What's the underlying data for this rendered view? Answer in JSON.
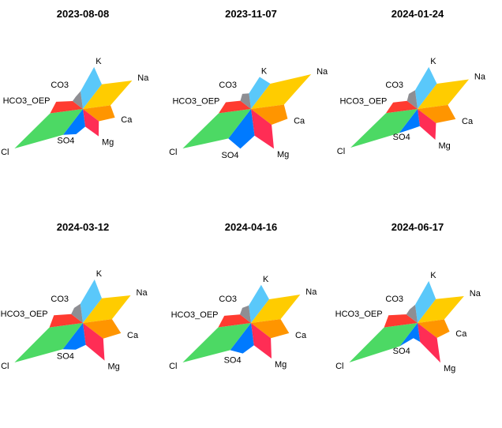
{
  "chart_data": {
    "type": "radar-star",
    "axes": [
      "K",
      "Na",
      "Ca",
      "Mg",
      "SO4",
      "Cl",
      "HCO3_OEP",
      "CO3"
    ],
    "colors": {
      "K": "#5AC8FA",
      "Na": "#FFCC00",
      "Ca": "#FF9500",
      "Mg": "#FF2D55",
      "SO4": "#007AFF",
      "Cl": "#4CD964",
      "HCO3_OEP": "#FF3B30",
      "CO3": "#8E8E93"
    },
    "panels": [
      {
        "title": "2023-08-08",
        "values": {
          "K": 0.55,
          "Na": 0.72,
          "Ca": 0.42,
          "Mg": 0.4,
          "SO4": 0.33,
          "Cl": 1.0,
          "HCO3_OEP": 0.35,
          "CO3": 0.18
        }
      },
      {
        "title": "2023-11-07",
        "values": {
          "K": 0.42,
          "Na": 0.88,
          "Ca": 0.48,
          "Mg": 0.58,
          "SO4": 0.52,
          "Cl": 1.0,
          "HCO3_OEP": 0.33,
          "CO3": 0.22
        }
      },
      {
        "title": "2024-01-24",
        "values": {
          "K": 0.55,
          "Na": 0.75,
          "Ca": 0.5,
          "Mg": 0.45,
          "SO4": 0.26,
          "Cl": 0.98,
          "HCO3_OEP": 0.32,
          "CO3": 0.22
        }
      },
      {
        "title": "2024-03-12",
        "values": {
          "K": 0.57,
          "Na": 0.7,
          "Ca": 0.5,
          "Mg": 0.55,
          "SO4": 0.35,
          "Cl": 1.0,
          "HCO3_OEP": 0.38,
          "CO3": 0.22
        }
      },
      {
        "title": "2024-04-16",
        "values": {
          "K": 0.5,
          "Na": 0.72,
          "Ca": 0.5,
          "Mg": 0.52,
          "SO4": 0.4,
          "Cl": 1.0,
          "HCO3_OEP": 0.35,
          "CO3": 0.22
        }
      },
      {
        "title": "2024-06-17",
        "values": {
          "K": 0.55,
          "Na": 0.68,
          "Ca": 0.42,
          "Mg": 0.58,
          "SO4": 0.2,
          "Cl": 1.0,
          "HCO3_OEP": 0.38,
          "CO3": 0.2
        }
      }
    ]
  }
}
